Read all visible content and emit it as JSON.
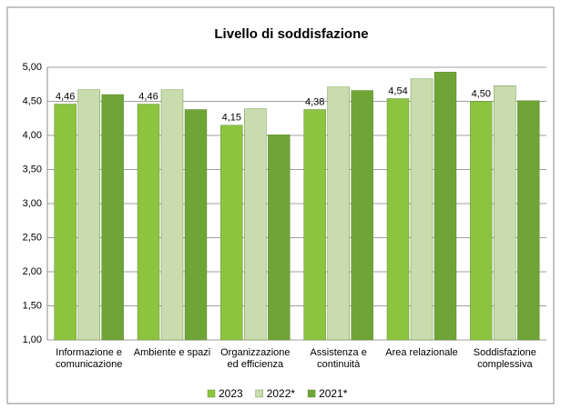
{
  "chart_data": {
    "type": "bar",
    "title": "Livello di soddisfazione",
    "categories": [
      "Informazione e comunicazione",
      "Ambiente e spazi",
      "Organizzazione ed efficienza",
      "Assistenza e continuità",
      "Area relazionale",
      "Soddisfazione complessiva"
    ],
    "series": [
      {
        "name": "2023",
        "color": "#8cc43f",
        "values": [
          4.46,
          4.46,
          4.15,
          4.38,
          4.54,
          4.5
        ],
        "value_labels": [
          "4,46",
          "4,46",
          "4,15",
          "4,38",
          "4,54",
          "4,50"
        ]
      },
      {
        "name": "2022*",
        "color": "#c9dcae",
        "values": [
          4.67,
          4.67,
          4.39,
          4.71,
          4.83,
          4.73
        ]
      },
      {
        "name": "2021*",
        "color": "#6fa537",
        "values": [
          4.6,
          4.38,
          4.01,
          4.66,
          4.93,
          4.51
        ]
      }
    ],
    "ylim": [
      1,
      5
    ],
    "yticks": [
      {
        "value": 1,
        "label": "1,00"
      },
      {
        "value": 1.5,
        "label": "1,50"
      },
      {
        "value": 2,
        "label": "2,00"
      },
      {
        "value": 2.5,
        "label": "2,50"
      },
      {
        "value": 3,
        "label": "3,00"
      },
      {
        "value": 3.5,
        "label": "3,50"
      },
      {
        "value": 4,
        "label": "4,00"
      },
      {
        "value": 4.5,
        "label": "4,50"
      },
      {
        "value": 5,
        "label": "5,00"
      }
    ],
    "grid": true,
    "legend": "bottom"
  }
}
